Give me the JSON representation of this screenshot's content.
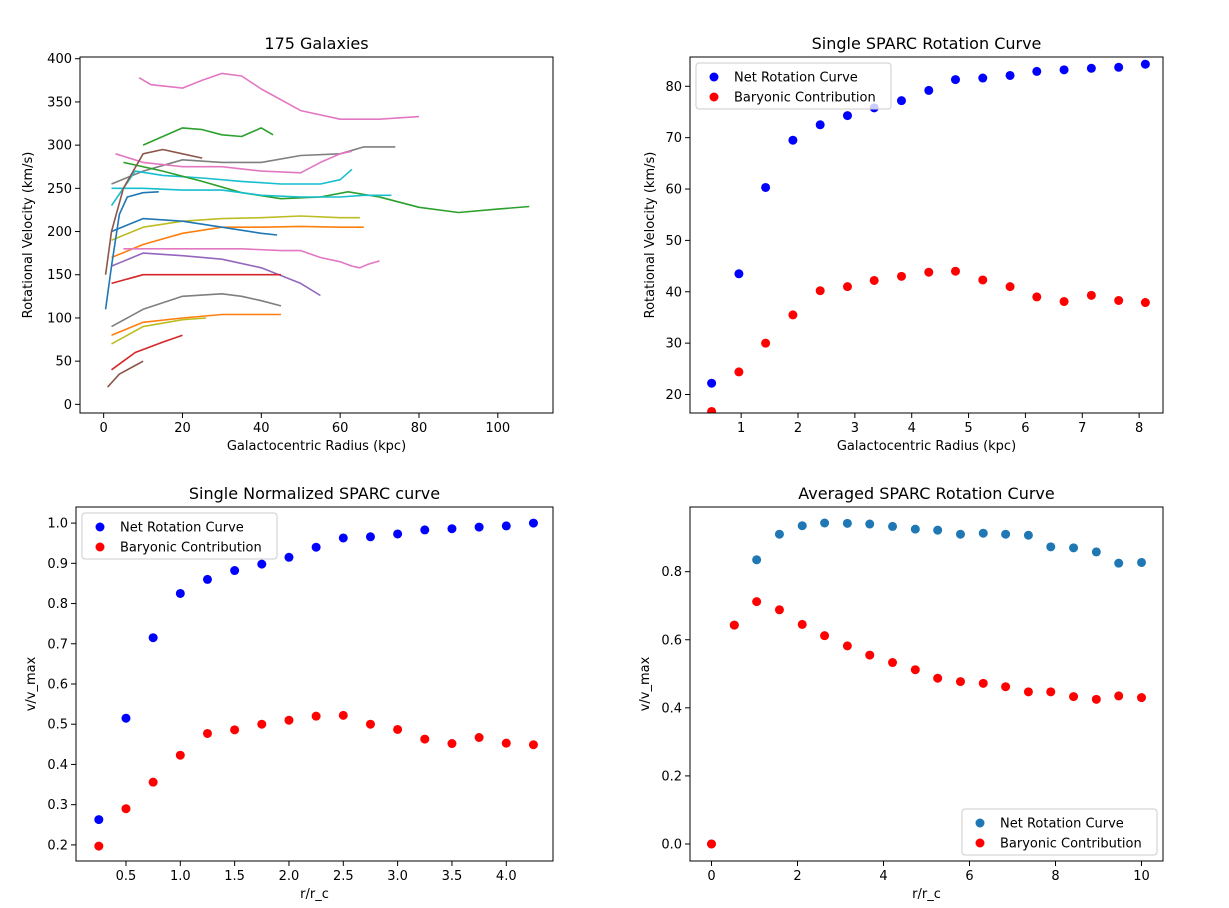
{
  "chart_data": [
    {
      "type": "line",
      "title": "175 Galaxies",
      "xlabel": "Galactocentric Radius (kpc)",
      "ylabel": "Rotational Velocity (km/s)",
      "xlim": [
        -6,
        114
      ],
      "ylim": [
        -10,
        402
      ],
      "xticks": [
        0,
        20,
        40,
        60,
        80,
        100
      ],
      "yticks": [
        0,
        50,
        100,
        150,
        200,
        250,
        300,
        350,
        400
      ],
      "series": [
        {
          "name": "pink-1",
          "color": "#e377c2",
          "x": [
            9,
            12,
            20,
            25,
            30,
            35,
            40,
            50,
            60,
            70,
            80
          ],
          "y": [
            378,
            370,
            366,
            375,
            383,
            380,
            365,
            340,
            330,
            330,
            333
          ]
        },
        {
          "name": "green-1",
          "color": "#2ca02c",
          "x": [
            10,
            15,
            20,
            25,
            30,
            35,
            40,
            43
          ],
          "y": [
            300,
            310,
            320,
            318,
            312,
            310,
            320,
            312
          ]
        },
        {
          "name": "gray-1",
          "color": "#7f7f7f",
          "x": [
            2,
            10,
            20,
            30,
            40,
            50,
            60,
            66,
            74
          ],
          "y": [
            255,
            270,
            283,
            280,
            280,
            288,
            290,
            298,
            298
          ]
        },
        {
          "name": "pink-2",
          "color": "#e377c2",
          "x": [
            3,
            10,
            20,
            30,
            40,
            50,
            55,
            60,
            63
          ],
          "y": [
            290,
            280,
            275,
            275,
            270,
            268,
            280,
            290,
            293
          ]
        },
        {
          "name": "cyan-1",
          "color": "#17becf",
          "x": [
            2,
            8,
            15,
            25,
            35,
            45,
            55,
            60,
            63
          ],
          "y": [
            230,
            270,
            265,
            262,
            258,
            255,
            255,
            260,
            272
          ]
        },
        {
          "name": "green-2",
          "color": "#2ca02c",
          "x": [
            5,
            15,
            25,
            35,
            45,
            55,
            62,
            70,
            80,
            90,
            100,
            108
          ],
          "y": [
            280,
            270,
            258,
            245,
            238,
            240,
            246,
            240,
            228,
            222,
            226,
            229
          ]
        },
        {
          "name": "cyan-2",
          "color": "#17becf",
          "x": [
            2,
            10,
            20,
            30,
            40,
            50,
            60,
            66,
            73
          ],
          "y": [
            250,
            250,
            248,
            248,
            242,
            240,
            240,
            242,
            242
          ]
        },
        {
          "name": "olive-1",
          "color": "#bcbd22",
          "x": [
            2,
            10,
            20,
            30,
            40,
            50,
            60,
            65
          ],
          "y": [
            190,
            205,
            212,
            215,
            216,
            218,
            216,
            216
          ]
        },
        {
          "name": "orange-1",
          "color": "#ff7f0e",
          "x": [
            2,
            10,
            20,
            30,
            40,
            50,
            60,
            66
          ],
          "y": [
            170,
            185,
            198,
            205,
            205,
            206,
            205,
            205
          ]
        },
        {
          "name": "blue-1",
          "color": "#1f77b4",
          "x": [
            2,
            10,
            20,
            30,
            40,
            44
          ],
          "y": [
            200,
            215,
            212,
            205,
            198,
            196
          ]
        },
        {
          "name": "pink-3",
          "color": "#e377c2",
          "x": [
            5,
            15,
            25,
            35,
            45,
            50,
            55,
            60,
            63,
            65,
            67,
            70
          ],
          "y": [
            180,
            180,
            180,
            180,
            178,
            178,
            170,
            165,
            160,
            158,
            162,
            166
          ]
        },
        {
          "name": "purple-1",
          "color": "#9467bd",
          "x": [
            2,
            10,
            20,
            30,
            40,
            50,
            55
          ],
          "y": [
            160,
            175,
            172,
            168,
            158,
            140,
            126
          ]
        },
        {
          "name": "red-1",
          "color": "#d62728",
          "x": [
            2,
            10,
            20,
            30,
            40,
            45
          ],
          "y": [
            140,
            150,
            150,
            150,
            150,
            150
          ]
        },
        {
          "name": "gray-2",
          "color": "#7f7f7f",
          "x": [
            2,
            10,
            20,
            30,
            35,
            40,
            45
          ],
          "y": [
            90,
            110,
            125,
            128,
            125,
            120,
            114
          ]
        },
        {
          "name": "orange-2",
          "color": "#ff7f0e",
          "x": [
            2,
            10,
            20,
            30,
            40,
            45
          ],
          "y": [
            80,
            95,
            100,
            104,
            104,
            104
          ]
        },
        {
          "name": "olive-2",
          "color": "#bcbd22",
          "x": [
            2,
            10,
            20,
            26
          ],
          "y": [
            70,
            90,
            98,
            100
          ]
        },
        {
          "name": "red-2",
          "color": "#d62728",
          "x": [
            2,
            8,
            15,
            20
          ],
          "y": [
            40,
            60,
            72,
            80
          ]
        },
        {
          "name": "brown-1",
          "color": "#8c564b",
          "x": [
            1,
            4,
            8,
            10
          ],
          "y": [
            20,
            35,
            45,
            50
          ]
        },
        {
          "name": "blue-2",
          "color": "#1f77b4",
          "x": [
            0.5,
            2,
            4,
            6,
            10,
            14
          ],
          "y": [
            110,
            160,
            220,
            240,
            245,
            246
          ]
        },
        {
          "name": "brown-2",
          "color": "#8c564b",
          "x": [
            0.5,
            2,
            5,
            10,
            15,
            20,
            25
          ],
          "y": [
            150,
            200,
            250,
            290,
            295,
            290,
            285
          ]
        }
      ]
    },
    {
      "type": "scatter",
      "title": "Single SPARC Rotation Curve",
      "xlabel": "Galactocentric Radius (kpc)",
      "ylabel": "Rotational Velocity (km/s)",
      "xlim": [
        0.1,
        8.42
      ],
      "ylim": [
        16.4,
        85.7
      ],
      "xticks": [
        1,
        2,
        3,
        4,
        5,
        6,
        7,
        8
      ],
      "yticks": [
        20,
        30,
        40,
        50,
        60,
        70,
        80
      ],
      "legend_position": "upper-left",
      "x": [
        0.48,
        0.96,
        1.43,
        1.91,
        2.39,
        2.87,
        3.34,
        3.82,
        4.3,
        4.77,
        5.25,
        5.73,
        6.2,
        6.68,
        7.16,
        7.64,
        8.11
      ],
      "series": [
        {
          "name": "Net Rotation Curve",
          "color": "#0000ff",
          "values": [
            22.2,
            43.5,
            60.3,
            69.5,
            72.5,
            74.3,
            75.8,
            77.2,
            79.2,
            81.3,
            81.6,
            82.1,
            82.9,
            83.2,
            83.5,
            83.7,
            84.3
          ]
        },
        {
          "name": "Baryonic Contribution",
          "color": "#ff0000",
          "values": [
            16.7,
            24.4,
            30.0,
            35.5,
            40.2,
            41.0,
            42.2,
            43.0,
            43.8,
            44.0,
            42.3,
            41.0,
            39.0,
            38.1,
            39.3,
            38.3,
            37.9
          ]
        }
      ]
    },
    {
      "type": "scatter",
      "title": "Single Normalized SPARC curve",
      "xlabel": "r/r_c",
      "ylabel": "v/v_max",
      "xlim": [
        0.04,
        4.43
      ],
      "ylim": [
        0.16,
        1.04
      ],
      "xticks": [
        0.5,
        1.0,
        1.5,
        2.0,
        2.5,
        3.0,
        3.5,
        4.0
      ],
      "yticks": [
        0.2,
        0.3,
        0.4,
        0.5,
        0.6,
        0.7,
        0.8,
        0.9,
        1.0
      ],
      "legend_position": "upper-left",
      "x": [
        0.25,
        0.5,
        0.75,
        1.0,
        1.25,
        1.5,
        1.75,
        2.0,
        2.25,
        2.5,
        2.75,
        3.0,
        3.25,
        3.5,
        3.75,
        4.0,
        4.25
      ],
      "series": [
        {
          "name": "Net Rotation Curve",
          "color": "#0000ff",
          "values": [
            0.263,
            0.515,
            0.715,
            0.825,
            0.86,
            0.882,
            0.898,
            0.915,
            0.94,
            0.963,
            0.966,
            0.973,
            0.983,
            0.986,
            0.99,
            0.993,
            1.0
          ]
        },
        {
          "name": "Baryonic Contribution",
          "color": "#ff0000",
          "values": [
            0.197,
            0.29,
            0.356,
            0.423,
            0.477,
            0.486,
            0.5,
            0.51,
            0.52,
            0.522,
            0.5,
            0.487,
            0.463,
            0.452,
            0.467,
            0.453,
            0.449
          ]
        }
      ]
    },
    {
      "type": "scatter",
      "title": "Averaged SPARC Rotation Curve",
      "xlabel": "r/r_c",
      "ylabel": "v/v_max",
      "xlim": [
        -0.5,
        10.5
      ],
      "ylim": [
        -0.05,
        0.99
      ],
      "xticks": [
        0,
        2,
        4,
        6,
        8,
        10
      ],
      "yticks": [
        0.0,
        0.2,
        0.4,
        0.6,
        0.8
      ],
      "legend_position": "lower-right",
      "x": [
        0,
        0.53,
        1.05,
        1.58,
        2.11,
        2.63,
        3.16,
        3.68,
        4.21,
        4.74,
        5.26,
        5.79,
        6.32,
        6.84,
        7.37,
        7.89,
        8.42,
        8.95,
        9.47,
        10.0
      ],
      "series": [
        {
          "name": "Net Rotation Curve",
          "color": "#1f77b4",
          "values": [
            0.0,
            0.643,
            0.835,
            0.91,
            0.935,
            0.943,
            0.942,
            0.94,
            0.933,
            0.925,
            0.922,
            0.91,
            0.913,
            0.91,
            0.907,
            0.873,
            0.87,
            0.858,
            0.825,
            0.827
          ]
        },
        {
          "name": "Baryonic Contribution",
          "color": "#ff0000",
          "values": [
            0.0,
            0.643,
            0.712,
            0.688,
            0.645,
            0.612,
            0.582,
            0.555,
            0.533,
            0.512,
            0.487,
            0.477,
            0.472,
            0.462,
            0.447,
            0.447,
            0.433,
            0.425,
            0.435,
            0.43
          ]
        }
      ]
    }
  ]
}
